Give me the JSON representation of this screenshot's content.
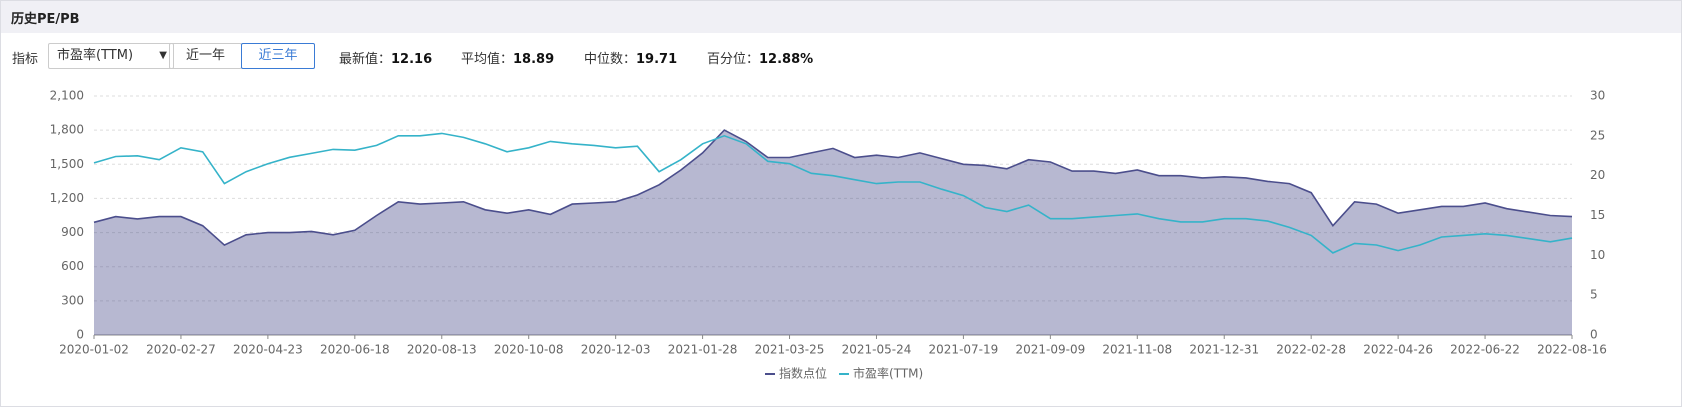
{
  "header": {
    "title": "历史PE/PB"
  },
  "controls": {
    "label": "指标",
    "select": "市盈率(TTM)",
    "buttons": [
      "近一年",
      "近三年"
    ]
  },
  "stats": [
    {
      "label": "最新值：",
      "value": "12.16"
    },
    {
      "label": "平均值：",
      "value": "18.89"
    },
    {
      "label": "中位数：",
      "value": "19.71"
    },
    {
      "label": "百分位：",
      "value": "12.88%"
    }
  ],
  "chart_data": {
    "type": "line",
    "categories": [
      "2020-01-02",
      null,
      null,
      null,
      "2020-02-27",
      null,
      null,
      null,
      "2020-04-23",
      null,
      null,
      null,
      "2020-06-18",
      null,
      null,
      null,
      "2020-08-13",
      null,
      null,
      null,
      "2020-10-08",
      null,
      null,
      null,
      "2020-12-03",
      null,
      null,
      null,
      "2021-01-28",
      null,
      null,
      null,
      "2021-03-25",
      null,
      null,
      null,
      "2021-05-24",
      null,
      null,
      null,
      "2021-07-19",
      null,
      null,
      null,
      "2021-09-09",
      null,
      null,
      null,
      "2021-11-08",
      null,
      null,
      null,
      "2021-12-31",
      null,
      null,
      null,
      "2022-02-28",
      null,
      null,
      null,
      "2022-04-26",
      null,
      null,
      null,
      "2022-06-22",
      null,
      null,
      null,
      "2022-08-16"
    ],
    "series": [
      {
        "name": "指数点位",
        "color": "#4b4e8c",
        "area": true,
        "axis": "y",
        "values": [
          990,
          1040,
          1020,
          1040,
          1040,
          960,
          790,
          880,
          900,
          900,
          910,
          880,
          920,
          1050,
          1170,
          1150,
          1160,
          1170,
          1100,
          1070,
          1100,
          1060,
          1150,
          1160,
          1170,
          1230,
          1320,
          1450,
          1600,
          1800,
          1700,
          1560,
          1560,
          1600,
          1640,
          1560,
          1580,
          1560,
          1600,
          1550,
          1500,
          1490,
          1460,
          1540,
          1520,
          1440,
          1440,
          1420,
          1450,
          1400,
          1400,
          1380,
          1390,
          1380,
          1350,
          1330,
          1250,
          960,
          1170,
          1150,
          1070,
          1100,
          1130,
          1130,
          1160,
          1110,
          1080,
          1050,
          1040
        ]
      },
      {
        "name": "市盈率(TTM)",
        "color": "#35b3c9",
        "area": false,
        "axis": "y2",
        "values": [
          21.6,
          22.4,
          22.5,
          22.0,
          23.5,
          23.0,
          19.0,
          20.5,
          21.5,
          22.3,
          22.8,
          23.3,
          23.2,
          23.8,
          25.0,
          25.0,
          25.3,
          24.8,
          24.0,
          23.0,
          23.5,
          24.3,
          24.0,
          23.8,
          23.5,
          23.7,
          20.5,
          22.0,
          24.0,
          25.0,
          24.0,
          21.8,
          21.5,
          20.3,
          20.0,
          19.5,
          19.0,
          19.2,
          19.2,
          18.3,
          17.5,
          16.0,
          15.5,
          16.3,
          14.6,
          14.6,
          14.8,
          15.0,
          15.2,
          14.6,
          14.2,
          14.2,
          14.6,
          14.6,
          14.3,
          13.5,
          12.5,
          10.3,
          11.5,
          11.3,
          10.6,
          11.3,
          12.3,
          12.5,
          12.7,
          12.5,
          12.1,
          11.7,
          12.16
        ]
      }
    ],
    "ylim": [
      0,
      2100
    ],
    "yticks": [
      0,
      300,
      600,
      900,
      {
        "value": 1200,
        "label": "1,200"
      },
      {
        "value": 1500,
        "label": "1,500"
      },
      {
        "value": 1800,
        "label": "1,800"
      },
      {
        "value": 2100,
        "label": "2,100"
      }
    ],
    "y2lim": [
      0,
      30
    ],
    "y2ticks": [
      0,
      5,
      10,
      15,
      20,
      25,
      30
    ],
    "grid": true,
    "legend": "bottom"
  }
}
